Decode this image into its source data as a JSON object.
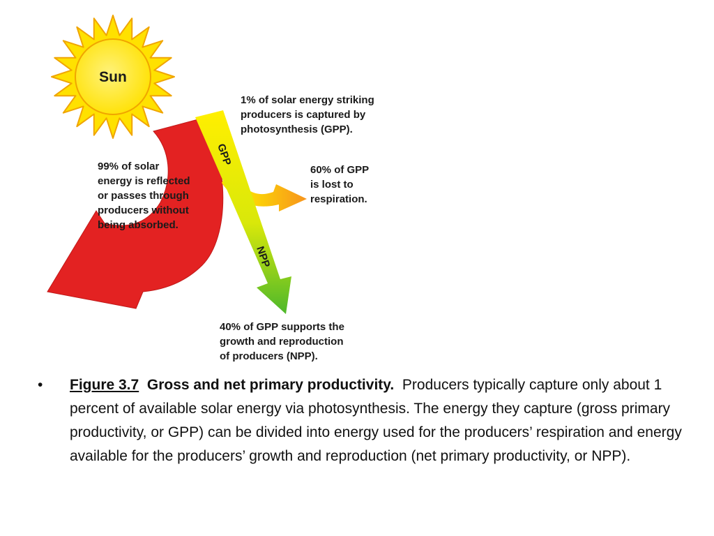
{
  "diagram": {
    "sun_label": "Sun",
    "gpp_label": "GPP",
    "npp_label": "NPP",
    "captured_note": "1% of solar energy striking\nproducers is captured by\nphotosynthesis (GPP).",
    "reflected_note": "99% of solar\nenergy is reflected\nor passes through\nproducers without\nbeing absorbed.",
    "respiration_note": "60% of GPP\nis lost to\nrespiration.",
    "npp_note": "40% of GPP supports the\ngrowth and reproduction\nof producers (NPP).",
    "colors": {
      "sun_fill": "#ffe100",
      "sun_outline": "#f0a500",
      "reflected_arrow": "#e32222",
      "gpp_arrow_top": "#ffef00",
      "npp_arrow_bottom": "#4db82b",
      "respiration_arrow": "#f7941d"
    }
  },
  "caption": {
    "bullet": "•",
    "figure_number": "Figure 3.7",
    "figure_title": "Gross and net primary productivity.",
    "body": "Producers typically capture only about 1 percent of available solar energy via photosynthesis. The energy they capture (gross primary productivity, or GPP) can be divided into energy used for the producers’ respiration and energy available for the producers’ growth and reproduction (net primary productivity, or NPP)."
  }
}
